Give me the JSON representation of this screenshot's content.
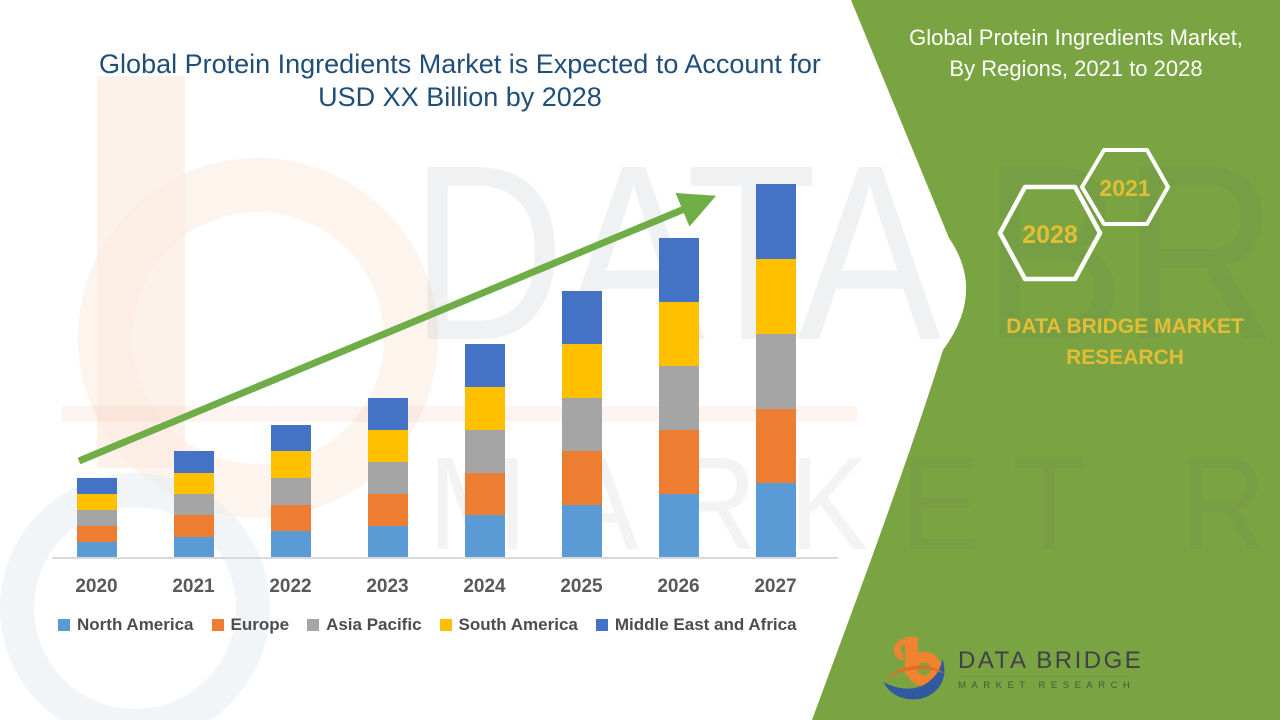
{
  "chart": {
    "title_line1": "Global Protein Ingredients Market is Expected to Account for",
    "title_line2": "USD XX Billion by 2028",
    "title_color": "#1F4E79"
  },
  "chart_data": {
    "type": "bar",
    "stacked": true,
    "title": "Global Protein Ingredients Market is Expected to Account for USD XX Billion by 2028",
    "categories": [
      "2020",
      "2021",
      "2022",
      "2023",
      "2024",
      "2025",
      "2026",
      "2027"
    ],
    "series": [
      {
        "name": "North America",
        "color": "#5B9BD5",
        "values": [
          0.6,
          0.8,
          1.0,
          1.2,
          1.6,
          2.0,
          2.4,
          2.8
        ]
      },
      {
        "name": "Europe",
        "color": "#ED7D31",
        "values": [
          0.6,
          0.8,
          1.0,
          1.2,
          1.6,
          2.0,
          2.4,
          2.8
        ]
      },
      {
        "name": "Asia Pacific",
        "color": "#A5A5A5",
        "values": [
          0.6,
          0.8,
          1.0,
          1.2,
          1.6,
          2.0,
          2.4,
          2.8
        ]
      },
      {
        "name": "South America",
        "color": "#FFC000",
        "values": [
          0.6,
          0.8,
          1.0,
          1.2,
          1.6,
          2.0,
          2.4,
          2.8
        ]
      },
      {
        "name": "Middle East and Africa",
        "color": "#4472C4",
        "values": [
          0.6,
          0.8,
          1.0,
          1.2,
          1.6,
          2.0,
          2.4,
          2.8
        ]
      }
    ],
    "stack_totals_relative": [
      3,
      4,
      5,
      6,
      8,
      10,
      12,
      14
    ],
    "value_axis": "hidden — no y-axis labels shown (values are relative estimates, USD XX Billion)",
    "ylim": [
      0,
      14.6
    ],
    "grid": false,
    "legend_position": "bottom",
    "annotations": [
      {
        "type": "trend-arrow",
        "color": "#70AD47",
        "from": "above 2020 bar",
        "to": "above 2027 bar"
      }
    ]
  },
  "side_panel": {
    "bg": "#79A441",
    "title_line1": "Global Protein Ingredients Market,",
    "title_line2": "By Regions, 2021 to 2028",
    "hexagons": [
      {
        "label": "2028"
      },
      {
        "label": "2021"
      }
    ],
    "brand_line1": "DATA BRIDGE MARKET",
    "brand_line2": "RESEARCH",
    "accent_gold": "#E3BD35"
  },
  "logo": {
    "name": "DATA BRIDGE",
    "subtitle": "MARKET RESEARCH"
  },
  "watermark": {
    "line1": "DATA BRIDGE",
    "line2": "MARKET RESEARCH"
  }
}
